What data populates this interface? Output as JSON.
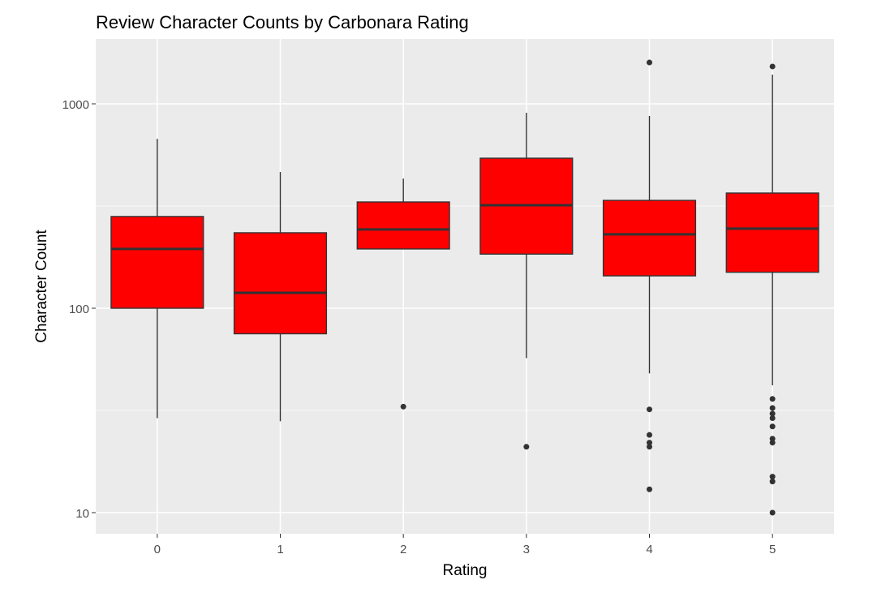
{
  "chart_data": {
    "type": "boxplot",
    "title": "Review Character Counts by Carbonara Rating",
    "xlabel": "Rating",
    "ylabel": "Character Count",
    "y_scale": "log10",
    "ylim": [
      7.5,
      1900
    ],
    "y_ticks": [
      10,
      100,
      1000
    ],
    "y_tick_labels": [
      "10",
      "100",
      "1000"
    ],
    "grid": true,
    "fill_color": "#ff0000",
    "line_color": "#333333",
    "panel_color": "#ebebeb",
    "categories": [
      "0",
      "1",
      "2",
      "3",
      "4",
      "5"
    ],
    "boxes": [
      {
        "category": "0",
        "lower_whisker": 29,
        "q1": 100,
        "median": 195,
        "q3": 281,
        "upper_whisker": 674,
        "outliers": []
      },
      {
        "category": "1",
        "lower_whisker": 28,
        "q1": 75,
        "median": 119,
        "q3": 234,
        "upper_whisker": 464,
        "outliers": []
      },
      {
        "category": "2",
        "lower_whisker": 195,
        "q1": 195,
        "median": 243,
        "q3": 331,
        "upper_whisker": 431,
        "outliers": [
          33
        ]
      },
      {
        "category": "3",
        "lower_whisker": 57,
        "q1": 184,
        "median": 319,
        "q3": 542,
        "upper_whisker": 904,
        "outliers": [
          21
        ]
      },
      {
        "category": "4",
        "lower_whisker": 48,
        "q1": 144,
        "median": 230,
        "q3": 337,
        "upper_whisker": 872,
        "outliers": [
          1593,
          32,
          24,
          22,
          21,
          13
        ]
      },
      {
        "category": "5",
        "lower_whisker": 42,
        "q1": 150,
        "median": 245,
        "q3": 366,
        "upper_whisker": 1390,
        "outliers": [
          1523,
          36,
          32.5,
          30.5,
          29,
          26.4,
          23,
          22,
          15,
          14.2,
          10
        ]
      }
    ]
  }
}
